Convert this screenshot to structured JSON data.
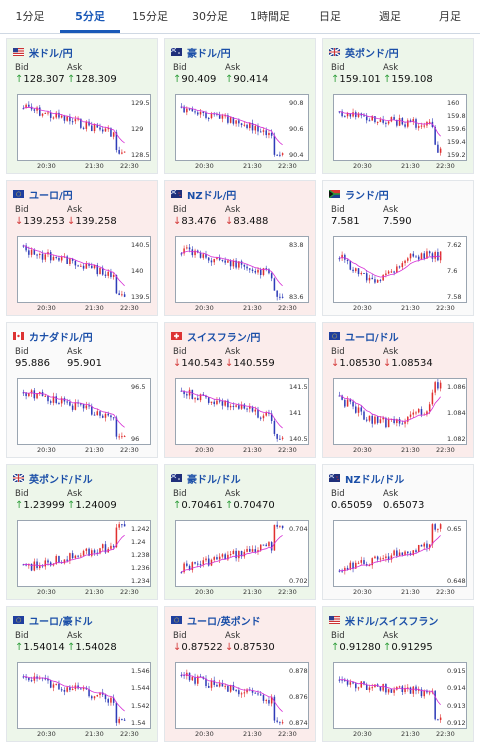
{
  "tabs": [
    "1分足",
    "5分足",
    "15分足",
    "30分足",
    "1時間足",
    "日足",
    "週足",
    "月足"
  ],
  "active_tab": 1,
  "labels": {
    "bid": "Bid",
    "ask": "Ask"
  },
  "x_ticks": [
    "20:30",
    "21:30",
    "22:30"
  ],
  "colors": {
    "up_bg": "#edf6ea",
    "down_bg": "#fbeceb",
    "title": "#1b4fa8",
    "up_arrow": "#2e9e3a",
    "down_arrow": "#d43a3a",
    "candle_up": "#e03030",
    "candle_down": "#2e3cb8",
    "ma": "#d62fd6"
  },
  "pairs": [
    {
      "name": "米ドル/円",
      "flag": "us",
      "dir": "up",
      "bid": "128.307",
      "ask": "128.309",
      "arrow": "↑",
      "yticks": [
        "129.5",
        "129",
        "128.5"
      ],
      "trend": "down",
      "chart": {
        "ylim": [
          128.2,
          129.6
        ]
      }
    },
    {
      "name": "豪ドル/円",
      "flag": "au",
      "dir": "up",
      "bid": "90.409",
      "ask": "90.414",
      "arrow": "↑",
      "yticks": [
        "90.8",
        "90.6",
        "90.4"
      ],
      "trend": "down",
      "chart": {
        "ylim": [
          90.35,
          90.9
        ]
      }
    },
    {
      "name": "英ポンド/円",
      "flag": "gb",
      "dir": "up",
      "bid": "159.101",
      "ask": "159.108",
      "arrow": "↑",
      "yticks": [
        "160",
        "159.8",
        "159.6",
        "159.4",
        "159.2"
      ],
      "trend": "flatdown",
      "chart": {
        "ylim": [
          159.1,
          160.05
        ]
      }
    },
    {
      "name": "ユーロ/円",
      "flag": "eu",
      "dir": "down",
      "bid": "139.253",
      "ask": "139.258",
      "arrow": "↓",
      "yticks": [
        "140.5",
        "140",
        "139.5"
      ],
      "trend": "down",
      "chart": {
        "ylim": [
          139.2,
          140.6
        ]
      }
    },
    {
      "name": "NZドル/円",
      "flag": "nz",
      "dir": "down",
      "bid": "83.476",
      "ask": "83.488",
      "arrow": "↓",
      "yticks": [
        "83.8",
        "83.6"
      ],
      "trend": "down",
      "chart": {
        "ylim": [
          83.45,
          83.9
        ]
      }
    },
    {
      "name": "ランド/円",
      "flag": "za",
      "dir": "flat",
      "bid": "7.581",
      "ask": "7.590",
      "arrow": "",
      "yticks": [
        "7.62",
        "7.6",
        "7.58"
      ],
      "trend": "vally",
      "chart": {
        "ylim": [
          7.575,
          7.625
        ]
      }
    },
    {
      "name": "カナダドル/円",
      "flag": "ca",
      "dir": "flat",
      "bid": "95.886",
      "ask": "95.901",
      "arrow": "",
      "yticks": [
        "96.5",
        "96"
      ],
      "trend": "down",
      "chart": {
        "ylim": [
          95.85,
          96.9
        ]
      }
    },
    {
      "name": "スイスフラン/円",
      "flag": "ch",
      "dir": "down",
      "bid": "140.543",
      "ask": "140.559",
      "arrow": "↓",
      "yticks": [
        "141.5",
        "141",
        "140.5"
      ],
      "trend": "down",
      "chart": {
        "ylim": [
          140.45,
          141.7
        ]
      }
    },
    {
      "name": "ユーロ/ドル",
      "flag": "eu",
      "dir": "down",
      "bid": "1.08530",
      "ask": "1.08534",
      "arrow": "↓",
      "yticks": [
        "1.086",
        "1.084",
        "1.082"
      ],
      "trend": "vup",
      "chart": {
        "ylim": [
          1.0815,
          1.0865
        ]
      }
    },
    {
      "name": "英ポンド/ドル",
      "flag": "gb",
      "dir": "up",
      "bid": "1.23999",
      "ask": "1.24009",
      "arrow": "↑",
      "yticks": [
        "1.242",
        "1.24",
        "1.238",
        "1.236",
        "1.234"
      ],
      "trend": "up",
      "chart": {
        "ylim": [
          1.2335,
          1.2425
        ]
      }
    },
    {
      "name": "豪ドル/ドル",
      "flag": "au",
      "dir": "up",
      "bid": "0.70461",
      "ask": "0.70470",
      "arrow": "↑",
      "yticks": [
        "0.704",
        "0.702"
      ],
      "trend": "up",
      "chart": {
        "ylim": [
          0.7015,
          0.7052
        ]
      }
    },
    {
      "name": "NZドル/ドル",
      "flag": "nz",
      "dir": "flat",
      "bid": "0.65059",
      "ask": "0.65073",
      "arrow": "",
      "yticks": [
        "0.65",
        "0.648"
      ],
      "trend": "up",
      "chart": {
        "ylim": [
          0.6475,
          0.6512
        ]
      }
    },
    {
      "name": "ユーロ/豪ドル",
      "flag": "eu",
      "dir": "up",
      "bid": "1.54014",
      "ask": "1.54028",
      "arrow": "↑",
      "yticks": [
        "1.546",
        "1.544",
        "1.542",
        "1.54"
      ],
      "trend": "down",
      "chart": {
        "ylim": [
          1.5395,
          1.5465
        ]
      }
    },
    {
      "name": "ユーロ/英ポンド",
      "flag": "eu",
      "dir": "down",
      "bid": "0.87522",
      "ask": "0.87530",
      "arrow": "↓",
      "yticks": [
        "0.878",
        "0.876",
        "0.874"
      ],
      "trend": "down",
      "chart": {
        "ylim": [
          0.8738,
          0.8785
        ]
      }
    },
    {
      "name": "米ドル/スイスフラン",
      "flag": "us",
      "dir": "up",
      "bid": "0.91280",
      "ask": "0.91295",
      "arrow": "↑",
      "yticks": [
        "0.915",
        "0.914",
        "0.913",
        "0.912"
      ],
      "trend": "flatdown",
      "chart": {
        "ylim": [
          0.9115,
          0.9155
        ]
      }
    }
  ]
}
